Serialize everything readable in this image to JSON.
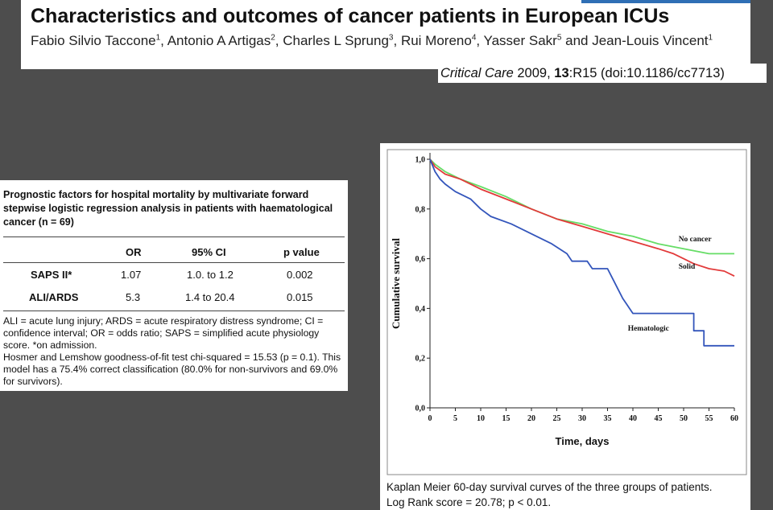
{
  "header": {
    "title": "Characteristics and outcomes of cancer patients in European ICUs",
    "authors": [
      {
        "name": "Fabio Silvio Taccone",
        "aff": "1",
        "sep": ", "
      },
      {
        "name": "Antonio A Artigas",
        "aff": "2",
        "sep": ", "
      },
      {
        "name": "Charles L Sprung",
        "aff": "3",
        "sep": ", "
      },
      {
        "name": "Rui Moreno",
        "aff": "4",
        "sep": ", "
      },
      {
        "name": "Yasser Sakr",
        "aff": "5",
        "sep": " and "
      },
      {
        "name": "Jean-Louis Vincent",
        "aff": "1",
        "sep": ""
      }
    ],
    "journal": {
      "name": "Critical Care",
      "year": "2009,",
      "volume": "13",
      "rest": ":R15 (doi:10.1186/cc7713)"
    }
  },
  "table": {
    "caption": "Prognostic factors for hospital mortality by multivariate forward stepwise logistic regression analysis in patients with haematological cancer (n = 69)",
    "headers": [
      "",
      "OR",
      "95% CI",
      "p value"
    ],
    "rows": [
      [
        "SAPS II*",
        "1.07",
        "1.0. to 1.2",
        "0.002"
      ],
      [
        "ALI/ARDS",
        "5.3",
        "1.4 to 20.4",
        "0.015"
      ]
    ],
    "notes": [
      "ALI = acute lung injury; ARDS = acute respiratory distress syndrome; CI = confidence interval; OR = odds ratio; SAPS = simplified acute physiology score. *on admission.",
      "Hosmer and Lemshow goodness-of-fit test chi-squared = 15.53 (p = 0.1). This model has a 75.4% correct classification (80.0% for non-survivors and 69.0% for survivors)."
    ]
  },
  "figure": {
    "caption_lines": [
      "Kaplan Meier 60-day survival curves of the three groups of patients.",
      "Log Rank score = 20.78; p < 0.01."
    ]
  },
  "chart_data": {
    "type": "line",
    "xlabel": "Time, days",
    "ylabel": "Cumulative survival",
    "xlim": [
      0,
      60
    ],
    "ylim": [
      0,
      1
    ],
    "x_ticks": [
      "0",
      "5",
      "10",
      "15",
      "20",
      "25",
      "30",
      "35",
      "40",
      "45",
      "50",
      "55",
      "60"
    ],
    "y_ticks": [
      "0,0",
      "0,2",
      "0,4",
      "0,6",
      "0,8",
      "1,0"
    ],
    "grid": false,
    "legend": "inline labels",
    "series": [
      {
        "name": "No cancer",
        "color": "#66dd66",
        "label_at": [
          49,
          0.67
        ],
        "points": [
          [
            0,
            1.0
          ],
          [
            1,
            0.98
          ],
          [
            3,
            0.95
          ],
          [
            6,
            0.92
          ],
          [
            10,
            0.89
          ],
          [
            15,
            0.85
          ],
          [
            20,
            0.8
          ],
          [
            25,
            0.76
          ],
          [
            30,
            0.74
          ],
          [
            35,
            0.71
          ],
          [
            40,
            0.69
          ],
          [
            45,
            0.66
          ],
          [
            50,
            0.64
          ],
          [
            55,
            0.62
          ],
          [
            60,
            0.62
          ]
        ]
      },
      {
        "name": "Solid",
        "color": "#e23a3a",
        "label_at": [
          49,
          0.56
        ],
        "points": [
          [
            0,
            1.0
          ],
          [
            1,
            0.97
          ],
          [
            3,
            0.94
          ],
          [
            6,
            0.92
          ],
          [
            10,
            0.88
          ],
          [
            15,
            0.84
          ],
          [
            20,
            0.8
          ],
          [
            25,
            0.76
          ],
          [
            30,
            0.73
          ],
          [
            35,
            0.7
          ],
          [
            40,
            0.67
          ],
          [
            45,
            0.64
          ],
          [
            48,
            0.62
          ],
          [
            50,
            0.6
          ],
          [
            52,
            0.58
          ],
          [
            55,
            0.56
          ],
          [
            58,
            0.55
          ],
          [
            60,
            0.53
          ]
        ]
      },
      {
        "name": "Hematologic",
        "color": "#3355bb",
        "label_at": [
          39,
          0.31
        ],
        "points": [
          [
            0,
            1.0
          ],
          [
            1,
            0.95
          ],
          [
            2,
            0.92
          ],
          [
            3,
            0.9
          ],
          [
            5,
            0.87
          ],
          [
            8,
            0.84
          ],
          [
            10,
            0.8
          ],
          [
            12,
            0.77
          ],
          [
            16,
            0.74
          ],
          [
            20,
            0.7
          ],
          [
            24,
            0.66
          ],
          [
            27,
            0.62
          ],
          [
            28,
            0.59
          ],
          [
            31,
            0.59
          ],
          [
            32,
            0.56
          ],
          [
            35,
            0.56
          ],
          [
            36,
            0.52
          ],
          [
            37,
            0.48
          ],
          [
            38,
            0.44
          ],
          [
            39,
            0.41
          ],
          [
            40,
            0.38
          ],
          [
            48,
            0.38
          ],
          [
            52,
            0.38
          ],
          [
            52,
            0.31
          ],
          [
            54,
            0.31
          ],
          [
            54,
            0.25
          ],
          [
            60,
            0.25
          ]
        ]
      }
    ]
  }
}
